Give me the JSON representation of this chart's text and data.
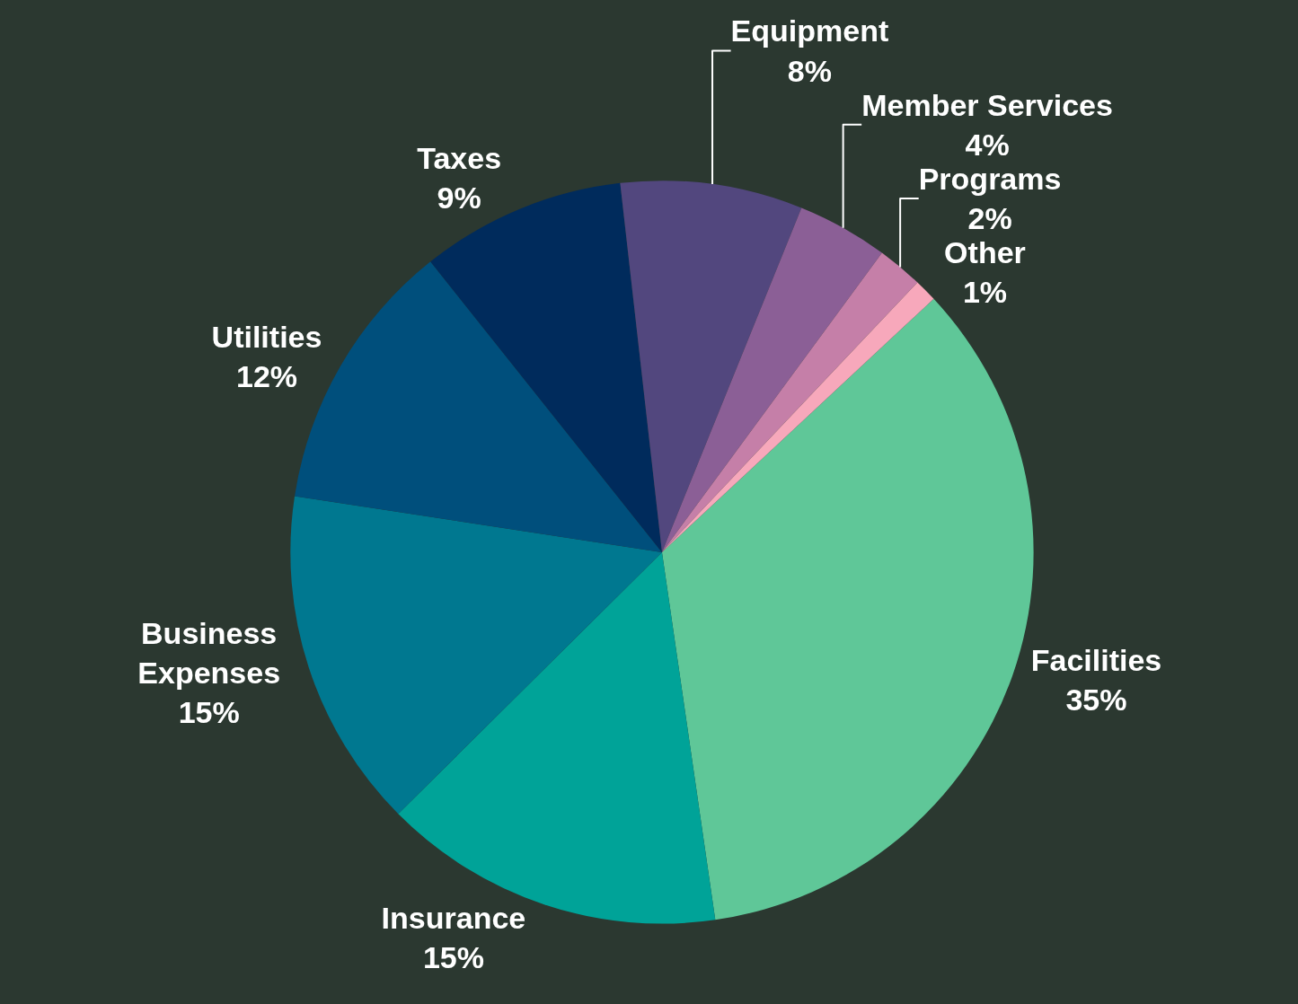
{
  "chart_data": {
    "type": "pie",
    "categories": [
      "Facilities",
      "Insurance",
      "Business Expenses",
      "Utilities",
      "Taxes",
      "Equipment",
      "Member Services",
      "Programs",
      "Other"
    ],
    "values": [
      35,
      15,
      15,
      12,
      9,
      8,
      4,
      2,
      1
    ],
    "value_labels": [
      "35%",
      "15%",
      "15%",
      "12%",
      "9%",
      "8%",
      "4%",
      "2%",
      "1%"
    ],
    "colors": [
      "#5fc798",
      "#00a398",
      "#007890",
      "#004f7c",
      "#002b5c",
      "#52477e",
      "#8b5f96",
      "#c57fa8",
      "#f7a8bb"
    ],
    "legend": false
  }
}
